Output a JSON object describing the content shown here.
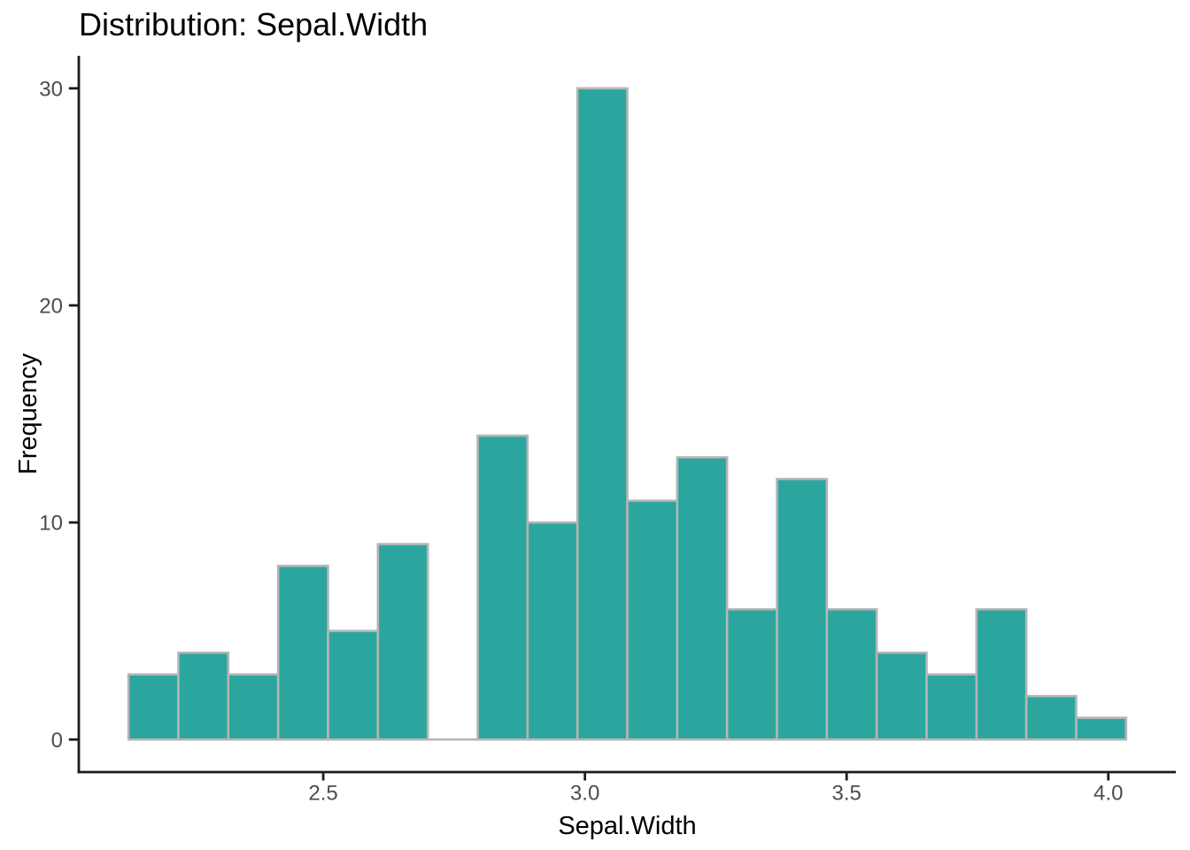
{
  "chart_data": {
    "type": "bar",
    "subtype": "histogram",
    "title": "Distribution: Sepal.Width",
    "xlabel": "Sepal.Width",
    "ylabel": "Frequency",
    "bin_start": 2.128,
    "bin_width": 0.0953,
    "counts": [
      3,
      4,
      3,
      8,
      5,
      9,
      0,
      14,
      10,
      30,
      11,
      13,
      6,
      12,
      6,
      4,
      3,
      6,
      2,
      1
    ],
    "bin_centers_approx": [
      2.18,
      2.27,
      2.37,
      2.46,
      2.56,
      2.65,
      2.75,
      2.84,
      2.94,
      3.03,
      3.13,
      3.22,
      3.32,
      3.41,
      3.51,
      3.6,
      3.7,
      3.8,
      3.89,
      3.99
    ],
    "x_ticks": [
      {
        "value": 2.5,
        "label": "2.5"
      },
      {
        "value": 3.0,
        "label": "3.0"
      },
      {
        "value": 3.5,
        "label": "3.5"
      },
      {
        "value": 4.0,
        "label": "4.0"
      }
    ],
    "y_ticks": [
      {
        "value": 0,
        "label": "0"
      },
      {
        "value": 10,
        "label": "10"
      },
      {
        "value": 20,
        "label": "20"
      },
      {
        "value": 30,
        "label": "30"
      }
    ],
    "x_range": [
      2.033,
      4.129
    ],
    "y_range": [
      -1.5,
      31.5
    ],
    "grid": false,
    "legend_position": "none",
    "colors": {
      "bar_fill": "#2aa69e",
      "bar_border": "#b5b5b5",
      "axis_line": "#1b1b1b",
      "tick_label": "#4d4d4d",
      "title_text": "#000000",
      "background": "#ffffff"
    }
  }
}
